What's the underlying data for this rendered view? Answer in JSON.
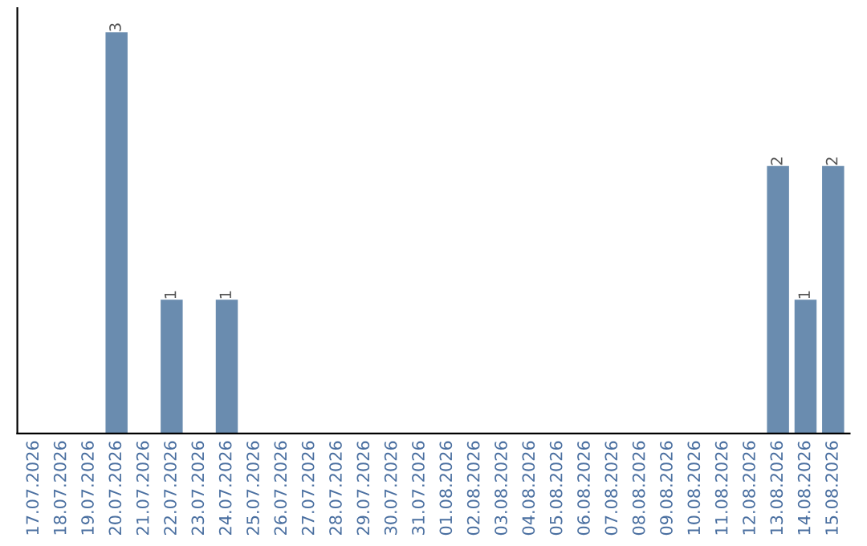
{
  "chart_data": {
    "type": "bar",
    "categories": [
      "17.07.2026",
      "18.07.2026",
      "19.07.2026",
      "20.07.2026",
      "21.07.2026",
      "22.07.2026",
      "23.07.2026",
      "24.07.2026",
      "25.07.2026",
      "26.07.2026",
      "27.07.2026",
      "28.07.2026",
      "29.07.2026",
      "30.07.2026",
      "31.07.2026",
      "01.08.2026",
      "02.08.2026",
      "03.08.2026",
      "04.08.2026",
      "05.08.2026",
      "06.08.2026",
      "07.08.2026",
      "08.08.2026",
      "09.08.2026",
      "10.08.2026",
      "11.08.2026",
      "12.08.2026",
      "13.08.2026",
      "14.08.2026",
      "15.08.2026"
    ],
    "values": [
      0,
      0,
      0,
      3,
      0,
      1,
      0,
      1,
      0,
      0,
      0,
      0,
      0,
      0,
      0,
      0,
      0,
      0,
      0,
      0,
      0,
      0,
      0,
      0,
      0,
      0,
      0,
      2,
      1,
      2
    ],
    "value_labels": [
      null,
      null,
      null,
      "3",
      null,
      "1",
      null,
      "1",
      null,
      null,
      null,
      null,
      null,
      null,
      null,
      null,
      null,
      null,
      null,
      null,
      null,
      null,
      null,
      null,
      null,
      null,
      null,
      "2",
      "1",
      "2"
    ],
    "color": "#6a8caf",
    "grid": false,
    "legend": false,
    "tick_labels": "x"
  }
}
